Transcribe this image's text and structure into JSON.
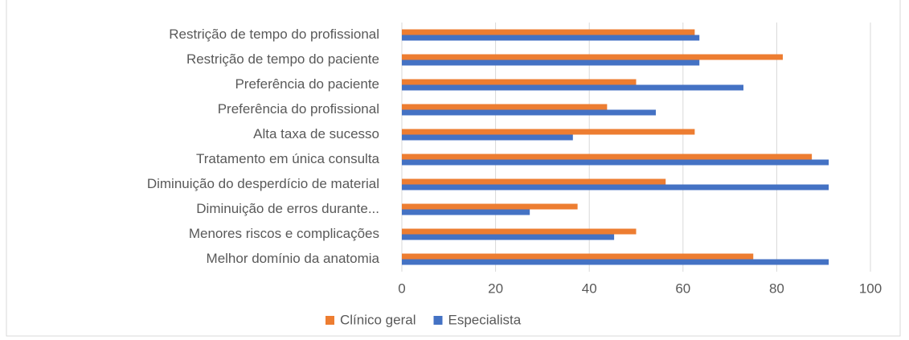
{
  "chart_data": {
    "type": "hbar",
    "categories": [
      "Restrição de tempo do profissional",
      "Restrição de tempo do paciente",
      "Preferência do paciente",
      "Preferência do profissional",
      "Alta taxa de sucesso",
      "Tratamento em única consulta",
      "Diminuição do desperdício de material",
      "Diminuição de erros durante...",
      "Menores riscos e complicações",
      "Melhor domínio da anatomia"
    ],
    "series": [
      {
        "name": "Clínico geral",
        "color": "#ed7d31",
        "values": [
          62.5,
          81.3,
          50,
          43.8,
          62.5,
          87.5,
          56.3,
          37.5,
          50,
          75
        ]
      },
      {
        "name": "Especialista",
        "color": "#4472c4",
        "values": [
          63.5,
          63.5,
          72.9,
          54.2,
          36.5,
          91.1,
          91.1,
          27.3,
          45.3,
          91.1
        ]
      }
    ],
    "xlim": [
      0,
      100
    ],
    "xticks": [
      0,
      20,
      40,
      60,
      80,
      100
    ],
    "grid": true,
    "legend": "bottom"
  }
}
